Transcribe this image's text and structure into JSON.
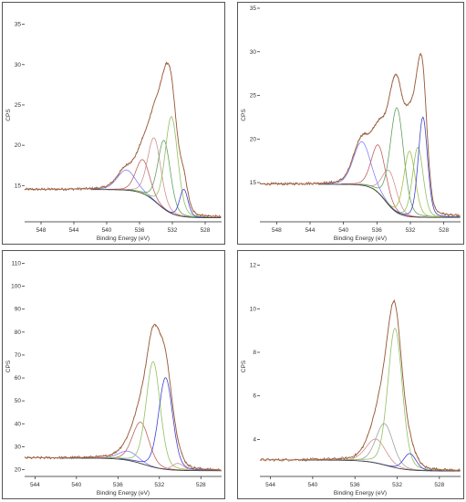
{
  "chart_data": [
    {
      "type": "line",
      "panel": "top-left",
      "xlabel": "Binding Energy (eV)",
      "ylabel": "CPS",
      "xlim": [
        550,
        526
      ],
      "ylim": [
        10.5,
        37
      ],
      "x_ticks": [
        548,
        544,
        540,
        536,
        532,
        528
      ],
      "y_ticks": [
        15,
        20,
        25,
        30,
        35
      ],
      "y_tick_labels": [
        "15",
        "20",
        "25",
        "30",
        "35"
      ],
      "background": {
        "y0": 14.5,
        "y1": 11.0,
        "x_step": 533.8,
        "k": 1.0
      },
      "components": [
        {
          "center": 537.6,
          "fwhm": 2.6,
          "height": 2.5,
          "color": "#8080ff"
        },
        {
          "center": 535.6,
          "fwhm": 2.0,
          "height": 4.2,
          "color": "#c06060"
        },
        {
          "center": 534.2,
          "fwhm": 1.9,
          "height": 7.8,
          "color": "#d09090"
        },
        {
          "center": 533.0,
          "fwhm": 1.8,
          "height": 8.5,
          "color": "#60a060"
        },
        {
          "center": 532.1,
          "fwhm": 1.8,
          "height": 12.0,
          "color": "#90c060"
        },
        {
          "center": 530.6,
          "fwhm": 1.2,
          "height": 3.4,
          "color": "#4040d0"
        }
      ],
      "raw_color": "#8b5a3c",
      "envelope_color": "#d08060",
      "background_color": "#444444"
    },
    {
      "type": "line",
      "panel": "top-right",
      "xlabel": "Binding Energy (eV)",
      "ylabel": "CPS",
      "xlim": [
        550,
        526
      ],
      "ylim": [
        10.5,
        35
      ],
      "x_ticks": [
        548,
        544,
        540,
        536,
        532,
        528
      ],
      "y_ticks": [
        15,
        20,
        25,
        30,
        35
      ],
      "y_tick_labels": [
        "15",
        "20",
        "25",
        "30",
        "35"
      ],
      "background": {
        "y0": 14.8,
        "y1": 11.0,
        "x_step": 535.0,
        "k": 0.8
      },
      "components": [
        {
          "center": 537.8,
          "fwhm": 2.4,
          "height": 5.0,
          "color": "#8080ff"
        },
        {
          "center": 535.8,
          "fwhm": 2.0,
          "height": 5.5,
          "color": "#c06060"
        },
        {
          "center": 534.5,
          "fwhm": 2.0,
          "height": 4.0,
          "color": "#d09090"
        },
        {
          "center": 533.6,
          "fwhm": 1.9,
          "height": 12.0,
          "color": "#60a060"
        },
        {
          "center": 532.1,
          "fwhm": 1.6,
          "height": 7.5,
          "color": "#a0c040"
        },
        {
          "center": 531.1,
          "fwhm": 1.5,
          "height": 8.0,
          "color": "#90c060"
        },
        {
          "center": 530.5,
          "fwhm": 1.3,
          "height": 11.5,
          "color": "#4040d0"
        }
      ],
      "raw_color": "#8b5a3c",
      "envelope_color": "#d08060",
      "background_color": "#444444"
    },
    {
      "type": "line",
      "panel": "bottom-left",
      "xlabel": "Binding Energy (eV)",
      "ylabel": "CPS",
      "xlim": [
        545,
        526
      ],
      "ylim": [
        17,
        113
      ],
      "x_ticks": [
        544,
        540,
        536,
        532,
        528
      ],
      "y_ticks": [
        20,
        30,
        40,
        50,
        60,
        70,
        80,
        90,
        100,
        110
      ],
      "y_tick_labels": [
        "20",
        "30",
        "40",
        "50",
        "60",
        "70",
        "80",
        "90",
        "100",
        "110"
      ],
      "background": {
        "y0": 25.0,
        "y1": 19.5,
        "x_step": 533.5,
        "k": 1.0
      },
      "components": [
        {
          "center": 535.0,
          "fwhm": 2.2,
          "height": 4.0,
          "color": "#8080ff"
        },
        {
          "center": 533.8,
          "fwhm": 1.9,
          "height": 18.0,
          "color": "#c06060"
        },
        {
          "center": 532.6,
          "fwhm": 1.6,
          "height": 46.0,
          "color": "#90c060"
        },
        {
          "center": 531.4,
          "fwhm": 1.6,
          "height": 40.0,
          "color": "#4040d0"
        },
        {
          "center": 530.2,
          "fwhm": 1.3,
          "height": 3.0,
          "color": "#d09090"
        }
      ],
      "raw_color": "#8b5a3c",
      "envelope_color": "#d08060",
      "background_color": "#444444"
    },
    {
      "type": "line",
      "panel": "bottom-right",
      "xlabel": "Binding Energy (eV)",
      "ylabel": "CPS",
      "xlim": [
        545,
        526
      ],
      "ylim": [
        2.3,
        12.4
      ],
      "x_ticks": [
        544,
        540,
        536,
        532,
        528
      ],
      "y_ticks": [
        4,
        6,
        8,
        10,
        12
      ],
      "y_tick_labels": [
        "4",
        "6",
        "8",
        "10",
        "12"
      ],
      "background": {
        "y0": 3.05,
        "y1": 2.55,
        "x_step": 533.0,
        "k": 1.0
      },
      "components": [
        {
          "center": 534.0,
          "fwhm": 2.2,
          "height": 1.1,
          "color": "#d09090"
        },
        {
          "center": 533.2,
          "fwhm": 1.9,
          "height": 1.9,
          "color": "#a0a0a0"
        },
        {
          "center": 532.2,
          "fwhm": 1.6,
          "height": 6.4,
          "color": "#90c060"
        },
        {
          "center": 530.8,
          "fwhm": 1.4,
          "height": 0.75,
          "color": "#4040d0"
        }
      ],
      "raw_color": "#8b5a3c",
      "envelope_color": "#d08060",
      "background_color": "#444444"
    }
  ]
}
